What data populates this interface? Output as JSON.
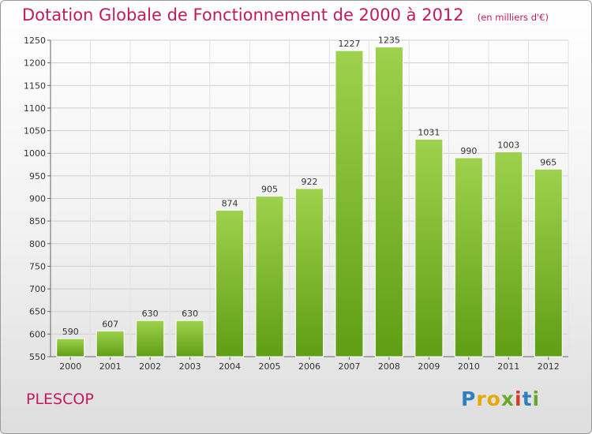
{
  "title": "Dotation Globale de Fonctionnement de 2000 à 2012",
  "subtitle": "(en milliers d'€)",
  "commune": "PLESCOP",
  "logo": "Proxiti",
  "chart_data": {
    "type": "bar",
    "categories": [
      "2000",
      "2001",
      "2002",
      "2003",
      "2004",
      "2005",
      "2006",
      "2007",
      "2008",
      "2009",
      "2010",
      "2011",
      "2012"
    ],
    "values": [
      590,
      607,
      630,
      630,
      874,
      905,
      922,
      1227,
      1235,
      1031,
      990,
      1003,
      965
    ],
    "ylim": [
      550,
      1250
    ],
    "yticks": [
      550,
      600,
      650,
      700,
      750,
      800,
      850,
      900,
      950,
      1000,
      1050,
      1100,
      1150,
      1200,
      1250
    ],
    "grid": true,
    "bar_color": "#7bbf2a"
  }
}
